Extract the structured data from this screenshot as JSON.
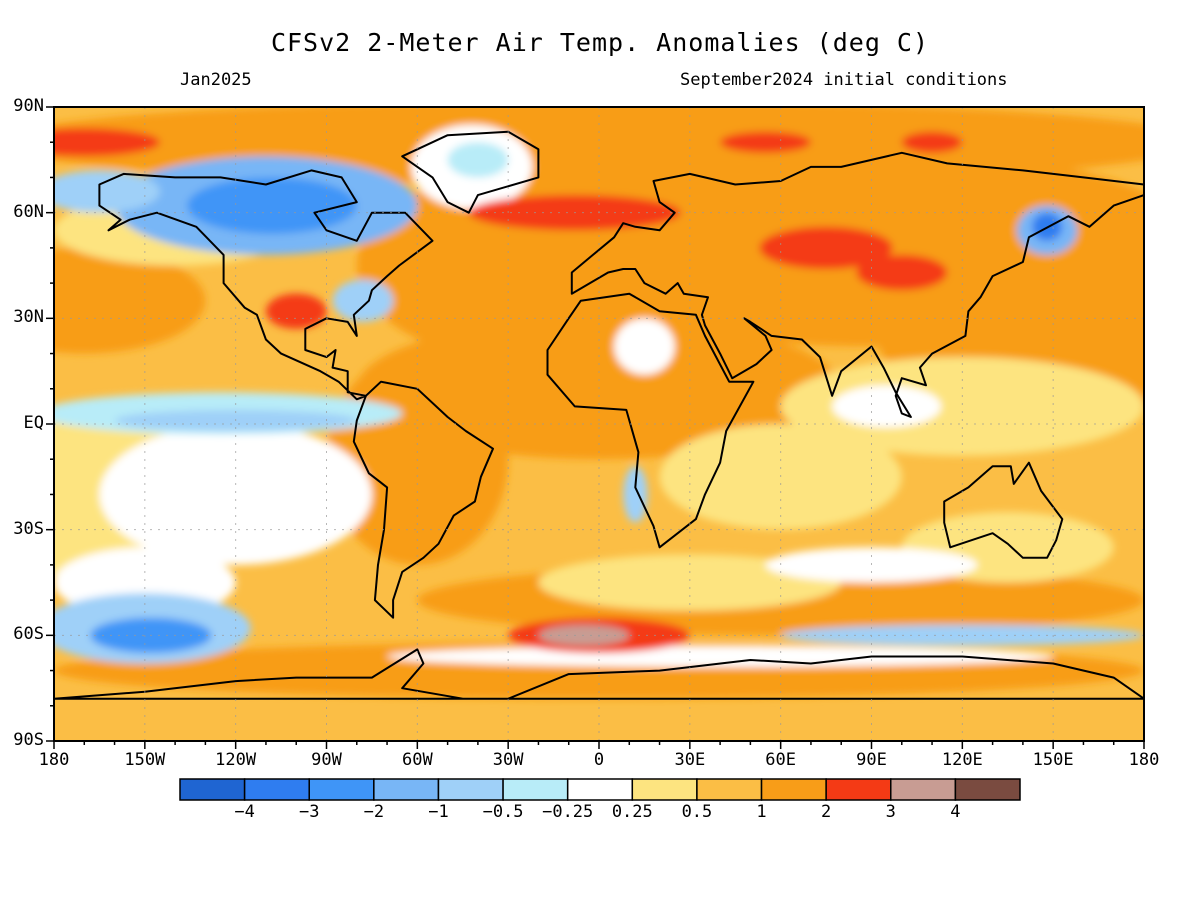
{
  "title": "CFSv2 2-Meter Air Temp. Anomalies (deg C)",
  "subtitle_left": "Jan2025",
  "subtitle_right": "September2024 initial conditions",
  "lat_labels": [
    "90N",
    "60N",
    "30N",
    "EQ",
    "30S",
    "60S",
    "90S"
  ],
  "lon_labels": [
    "180",
    "150W",
    "120W",
    "90W",
    "60W",
    "30W",
    "0",
    "30E",
    "60E",
    "90E",
    "120E",
    "150E",
    "180"
  ],
  "colorbar": {
    "colors": [
      "#1f65d2",
      "#2f7df0",
      "#3f95f7",
      "#78b6f6",
      "#9fd0f8",
      "#b8ecf8",
      "#ffffff",
      "#fde480",
      "#fbbe45",
      "#f89d18",
      "#f43a15",
      "#c89c93",
      "#7a4b40"
    ],
    "labels": [
      "−4",
      "−3",
      "−2",
      "−1",
      "−0.5",
      "−0.25",
      "0.25",
      "0.5",
      "1",
      "2",
      "3",
      "4"
    ]
  },
  "chart_data": {
    "type": "heatmap",
    "title": "CFSv2 2-Meter Air Temp. Anomalies (deg C)",
    "xlabel": "",
    "ylabel": "",
    "xlim": [
      -180,
      180
    ],
    "ylim": [
      -90,
      90
    ],
    "levels": [
      -4,
      -3,
      -2,
      -1,
      -0.5,
      -0.25,
      0.25,
      0.5,
      1,
      2,
      3,
      4
    ],
    "grid": true,
    "features": [
      {
        "region": "Arctic north of Alaska/Canada",
        "lat": 75,
        "lon": -150,
        "anomaly": 2.5
      },
      {
        "region": "Northern Canada",
        "lat": 60,
        "lon": -110,
        "anomaly": -2
      },
      {
        "region": "Alaska",
        "lat": 63,
        "lon": -155,
        "anomaly": -1
      },
      {
        "region": "Greenland",
        "lat": 73,
        "lon": -40,
        "anomaly": 0
      },
      {
        "region": "Hudson Bay",
        "lat": 58,
        "lon": -85,
        "anomaly": -0.5
      },
      {
        "region": "Southern US",
        "lat": 32,
        "lon": -97,
        "anomaly": 2.5
      },
      {
        "region": "Central Asia",
        "lat": 52,
        "lon": 78,
        "anomaly": 2.5
      },
      {
        "region": "Northeast Asia / Sea of Okhotsk",
        "lat": 56,
        "lon": 143,
        "anomaly": -2
      },
      {
        "region": "Equatorial east Pacific",
        "lat": -2,
        "lon": -125,
        "anomaly": -1
      },
      {
        "region": "Sahara",
        "lat": 20,
        "lon": 15,
        "anomaly": 0
      },
      {
        "region": "Southeast Pacific",
        "lat": -60,
        "lon": -145,
        "anomaly": -2
      },
      {
        "region": "South Atlantic near Antarctica",
        "lat": -62,
        "lon": -10,
        "anomaly": 3.5
      },
      {
        "region": "Southern Ocean (south of Australia)",
        "lat": -60,
        "lon": 120,
        "anomaly": -0.5
      },
      {
        "region": "Siberian Arctic coast",
        "lat": 80,
        "lon": 50,
        "anomaly": 2.5
      }
    ]
  }
}
